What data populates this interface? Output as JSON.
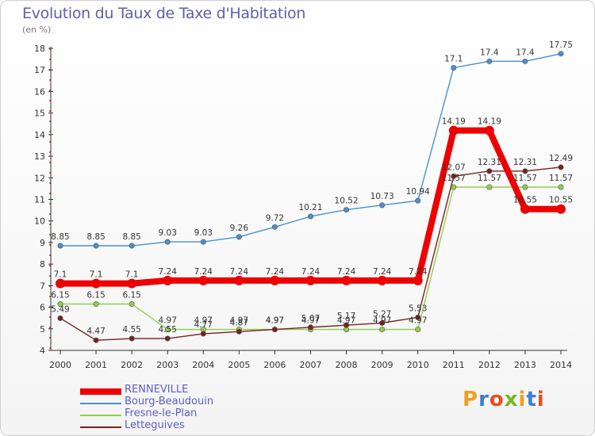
{
  "title": "Evolution du Taux de Taxe d'Habitation",
  "unit": "(en %)",
  "logo": {
    "text": "Proxiti",
    "colors": [
      "#f2a020",
      "#3a7fd0",
      "#e84e1b",
      "#7ab51d",
      "#f2a020",
      "#3a7fd0",
      "#e84e1b"
    ]
  },
  "chart_data": {
    "type": "line",
    "x": [
      "2000",
      "2001",
      "2002",
      "2003",
      "2004",
      "2005",
      "2006",
      "2007",
      "2008",
      "2009",
      "2010",
      "2011",
      "2012",
      "2013",
      "2014"
    ],
    "ylim": [
      4,
      18
    ],
    "yticks": [
      "4",
      "5",
      "6",
      "7",
      "8",
      "9",
      "10",
      "11",
      "12",
      "13",
      "14",
      "15",
      "16",
      "17",
      "18"
    ],
    "grid": false,
    "legend_position": "bottom-left",
    "series": [
      {
        "name": "RENNEVILLE",
        "color": "#ee0000",
        "thick": true,
        "values": [
          7.1,
          7.1,
          7.1,
          7.24,
          7.24,
          7.24,
          7.24,
          7.24,
          7.24,
          7.24,
          7.24,
          14.19,
          14.19,
          10.55,
          10.55
        ],
        "labels": [
          "7.1",
          "7.1",
          "7.1",
          "7.24",
          "7.24",
          "7.24",
          "7.24",
          "7.24",
          "7.24",
          "7.24",
          "7.24",
          "14.19",
          "14.19",
          "10.55",
          "10.55"
        ]
      },
      {
        "name": "Bourg-Beaudouin",
        "color": "#4a90d0",
        "thick": false,
        "values": [
          8.85,
          8.85,
          8.85,
          9.03,
          9.03,
          9.26,
          9.72,
          10.21,
          10.52,
          10.73,
          10.94,
          17.1,
          17.4,
          17.4,
          17.75
        ],
        "labels": [
          "8.85",
          "8.85",
          "8.85",
          "9.03",
          "9.03",
          "9.26",
          "9.72",
          "10.21",
          "10.52",
          "10.73",
          "10.94",
          "17.1",
          "17.4",
          "17.4",
          "17.75"
        ]
      },
      {
        "name": "Fresne-le-Plan",
        "color": "#8ed048",
        "thick": false,
        "values": [
          6.15,
          6.15,
          6.15,
          4.97,
          4.97,
          4.97,
          4.97,
          4.97,
          4.97,
          4.97,
          4.97,
          11.57,
          11.57,
          11.57,
          11.57
        ],
        "labels": [
          "6.15",
          "6.15",
          "6.15",
          "4.97",
          "4.97",
          "4.97",
          "4.97",
          "4.97",
          "4.97",
          "4.97",
          "4.97",
          "11.57",
          "11.57",
          "11.57",
          "11.57"
        ]
      },
      {
        "name": "Letteguives",
        "color": "#7a2020",
        "thick": false,
        "values": [
          5.49,
          4.47,
          4.55,
          4.55,
          4.77,
          4.87,
          4.97,
          5.07,
          5.17,
          5.27,
          5.53,
          12.07,
          12.31,
          12.31,
          12.49
        ],
        "labels": [
          "5.49",
          "4.47",
          "4.55",
          "4.55",
          "4.77",
          "4.87",
          "4.97",
          "5.07",
          "5.17",
          "5.27",
          "5.53",
          "12.07",
          "12.31",
          "12.31",
          "12.49"
        ]
      }
    ]
  }
}
